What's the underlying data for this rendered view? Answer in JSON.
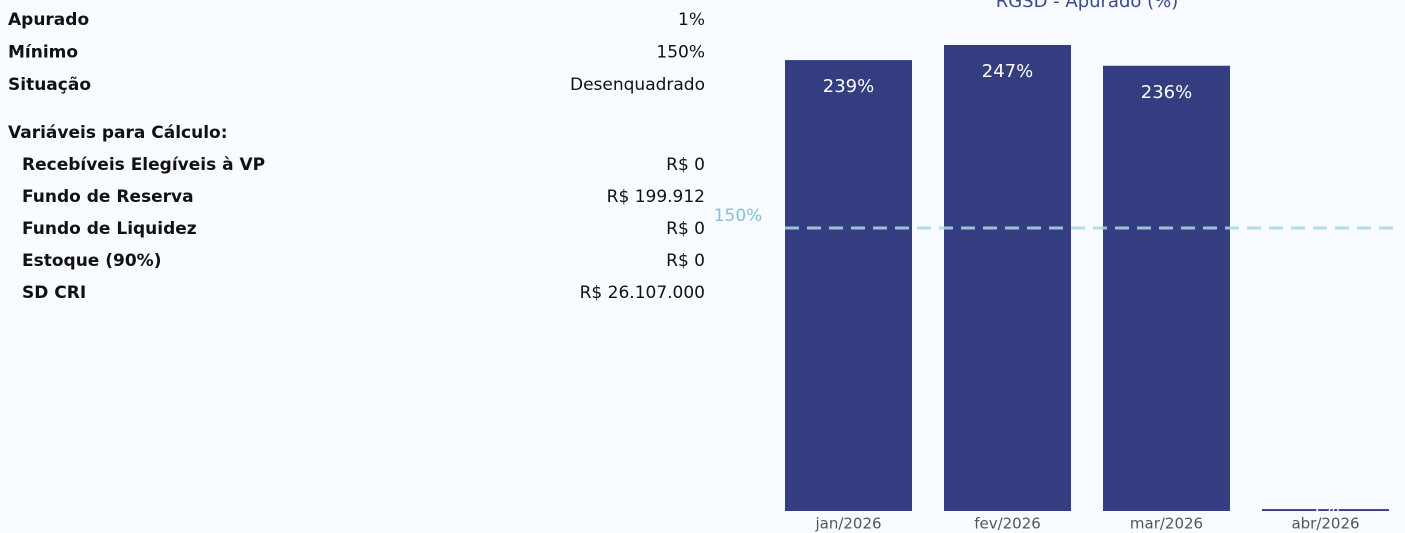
{
  "panel": {
    "rows": [
      {
        "label": "Apurado",
        "value": "1%"
      },
      {
        "label": "Mínimo",
        "value": "150%"
      },
      {
        "label": "Situação",
        "value": "Desenquadrado"
      }
    ],
    "section_title": "Variáveis para Cálculo:",
    "variables": [
      {
        "label": "Recebíveis Elegíveis à VP",
        "value": "R$ 0"
      },
      {
        "label": "Fundo de Reserva",
        "value": "R$ 199.912"
      },
      {
        "label": "Fundo de Liquidez",
        "value": "R$ 0"
      },
      {
        "label": "Estoque (90%)",
        "value": "R$ 0"
      },
      {
        "label": "SD CRI",
        "value": "R$ 26.107.000"
      }
    ]
  },
  "chart_data": {
    "type": "bar",
    "title": "RGSD - Apurado (%)",
    "categories": [
      "jan/2026",
      "fev/2026",
      "mar/2026",
      "abr/2026"
    ],
    "values": [
      239,
      247,
      236,
      1
    ],
    "value_labels": [
      "239%",
      "247%",
      "236%",
      "1%"
    ],
    "color": "#343d80",
    "ylim": [
      0,
      247
    ],
    "reference_line": {
      "value": 150,
      "label": "150%",
      "color": "#a9d9e3"
    }
  }
}
